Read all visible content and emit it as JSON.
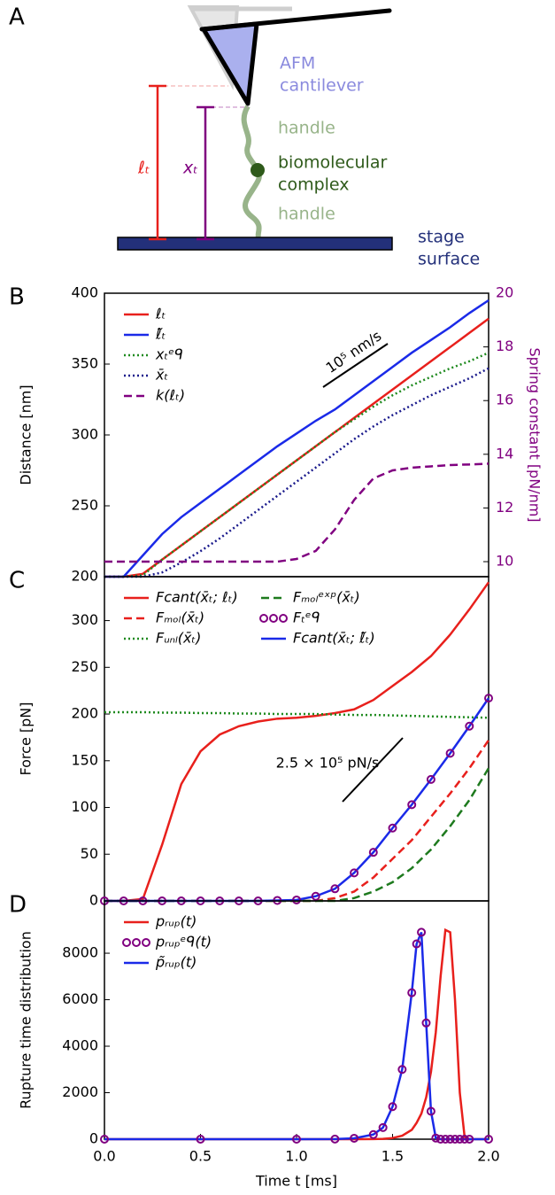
{
  "panel_a": {
    "label": "A",
    "cantilever": [
      "AFM",
      "cantilever"
    ],
    "handle_top": "handle",
    "complex": [
      "biomolecular",
      "complex"
    ],
    "handle_bottom": "handle",
    "stage": [
      "stage",
      "surface"
    ],
    "distance_label": "ℓₜ",
    "extension_label": "xₜ"
  },
  "chart_data": [
    {
      "type": "line",
      "panel_label": "B",
      "ylabel": "Distance [nm]",
      "y2label": "Spring constant [pN/nm]",
      "annotation": "10⁵ nm/s",
      "x": [
        0,
        0.1,
        0.2,
        0.3,
        0.4,
        0.5,
        0.6,
        0.7,
        0.8,
        0.9,
        1.0,
        1.1,
        1.2,
        1.3,
        1.4,
        1.5,
        1.6,
        1.7,
        1.8,
        1.9,
        2.0
      ],
      "xlim": [
        0,
        2
      ],
      "ylim": [
        200,
        400
      ],
      "yticks": [
        200,
        250,
        300,
        350,
        400
      ],
      "y2lim": [
        9.44,
        20
      ],
      "y2ticks": [
        10,
        12,
        14,
        16,
        18,
        20
      ],
      "y2color": "#800080",
      "legend": "upper left",
      "legend_columns": 1,
      "series": [
        {
          "name": "ℓₜ",
          "color": "#e8201c",
          "style": "solid",
          "values": [
            200,
            200,
            202,
            212,
            222,
            232,
            242,
            252,
            262,
            272,
            282,
            292,
            302,
            312,
            322,
            332,
            342,
            352,
            362,
            372,
            382
          ]
        },
        {
          "name": "ℓ̃ₜ",
          "color": "#1a2ae8",
          "style": "solid",
          "values": [
            200,
            200,
            215,
            230,
            242,
            252,
            262,
            272,
            282,
            292,
            301,
            310,
            318,
            328,
            338,
            348,
            358,
            367,
            376,
            386,
            395
          ]
        },
        {
          "name": "xₜᵉᑫ",
          "color": "#1e8a1e",
          "style": "dotted",
          "values": [
            200,
            200,
            201,
            212,
            222,
            232,
            242,
            252,
            262,
            272,
            282,
            292,
            302,
            311,
            320,
            328,
            335,
            341,
            347,
            352,
            358
          ]
        },
        {
          "name": "x̄ₜ",
          "color": "#1a1a8c",
          "style": "dotted",
          "values": [
            200,
            200,
            200,
            203,
            210,
            218,
            227,
            237,
            247,
            257,
            267,
            277,
            287,
            297,
            306,
            314,
            321,
            328,
            334,
            340,
            347
          ]
        },
        {
          "name": "k(ℓₜ)",
          "color": "#800080",
          "style": "dashed",
          "axis": "y2",
          "values": [
            10,
            10,
            10,
            10,
            10,
            10,
            10,
            10,
            10,
            10,
            10.1,
            10.4,
            11.2,
            12.3,
            13.1,
            13.4,
            13.5,
            13.55,
            13.6,
            13.62,
            13.65
          ]
        }
      ]
    },
    {
      "type": "line",
      "panel_label": "C",
      "ylabel": "Force [pN]",
      "annotation": "2.5 × 10⁵ pN/s",
      "x": [
        0,
        0.1,
        0.2,
        0.3,
        0.4,
        0.5,
        0.6,
        0.7,
        0.8,
        0.9,
        1.0,
        1.1,
        1.2,
        1.3,
        1.4,
        1.5,
        1.6,
        1.7,
        1.8,
        1.9,
        2.0
      ],
      "xlim": [
        0,
        2
      ],
      "ylim": [
        0,
        347
      ],
      "yticks": [
        0,
        50,
        100,
        150,
        200,
        250,
        300
      ],
      "legend": "upper left",
      "legend_columns": 2,
      "series": [
        {
          "name": "Fcant(x̄ₜ; ℓₜ)",
          "color": "#e8201c",
          "style": "solid",
          "values": [
            0,
            0,
            2,
            60,
            125,
            160,
            178,
            187,
            192,
            195,
            196,
            198,
            201,
            205,
            215,
            230,
            245,
            262,
            285,
            312,
            341
          ]
        },
        {
          "name": "Fₘₒₗ(x̄ₜ)",
          "color": "#e8201c",
          "style": "dashed",
          "values": [
            0,
            0,
            0,
            0,
            0,
            0,
            0,
            0,
            0,
            0,
            0,
            0,
            3,
            10,
            25,
            45,
            65,
            90,
            115,
            142,
            172
          ]
        },
        {
          "name": "Fᵤₙₗ(x̄ₜ)",
          "color": "#1e8a1e",
          "style": "dotted",
          "values": [
            202,
            202,
            202,
            201.5,
            201.5,
            201,
            201,
            200.5,
            200.5,
            200,
            200,
            200,
            199.5,
            199,
            199,
            198.5,
            198,
            197.5,
            197,
            196.5,
            196
          ]
        },
        {
          "name": "Fₘₒₗᵉˣᵖ(x̄ₜ)",
          "color": "#1e7a1e",
          "style": "dashed",
          "values": [
            0,
            0,
            0,
            0,
            0,
            0,
            0,
            0,
            0,
            0,
            0,
            0,
            0,
            3,
            10,
            20,
            35,
            55,
            80,
            108,
            142
          ]
        },
        {
          "name": "Fₜᵉᑫ",
          "color": "#800080",
          "style": "circles",
          "values": [
            0,
            0,
            0,
            0,
            0,
            0,
            0,
            0,
            0,
            0.5,
            1,
            5,
            13,
            30,
            52,
            78,
            103,
            130,
            158,
            187,
            217
          ]
        },
        {
          "name": "Fcant(x̄ₜ; ℓ̃ₜ)",
          "color": "#1a2ae8",
          "style": "solid",
          "values": [
            0,
            0,
            0,
            0,
            0,
            0,
            0,
            0,
            0,
            0.5,
            1,
            5,
            13,
            30,
            52,
            78,
            103,
            130,
            158,
            187,
            217
          ]
        }
      ]
    },
    {
      "type": "line",
      "panel_label": "D",
      "ylabel": "Rupture time distribution",
      "xlabel": "Time t [ms]",
      "x": [
        0,
        0.5,
        1.0,
        1.2,
        1.3,
        1.4,
        1.45,
        1.5,
        1.55,
        1.6,
        1.625,
        1.65,
        1.675,
        1.7,
        1.725,
        1.75,
        1.775,
        1.8,
        1.825,
        1.85,
        1.875,
        1.9,
        2.0
      ],
      "xlim": [
        0,
        2
      ],
      "xticks": [
        {
          "value": 0,
          "label": "0.0"
        },
        {
          "value": 0.5,
          "label": "0.5"
        },
        {
          "value": 1,
          "label": "1.0"
        },
        {
          "value": 1.5,
          "label": "1.5"
        },
        {
          "value": 2,
          "label": "2.0"
        }
      ],
      "ylim": [
        0,
        10250
      ],
      "yticks": [
        0,
        2000,
        4000,
        6000,
        8000
      ],
      "legend": "upper left",
      "legend_columns": 1,
      "series": [
        {
          "name": "pᵣᵤₚ(t)",
          "color": "#e8201c",
          "style": "solid",
          "values": [
            0,
            0,
            0,
            0,
            0,
            5,
            15,
            50,
            150,
            400,
            700,
            1100,
            1800,
            2900,
            4600,
            7000,
            9000,
            8900,
            6000,
            2000,
            100,
            0,
            0
          ]
        },
        {
          "name": "pᵣᵤₚᵉᑫ(t)",
          "color": "#800080",
          "style": "circles",
          "values": [
            0,
            0,
            0,
            5,
            40,
            200,
            500,
            1400,
            3000,
            6300,
            8400,
            8900,
            5000,
            1200,
            50,
            0,
            0,
            0,
            0,
            0,
            0,
            0,
            0
          ]
        },
        {
          "name": "p̃ᵣᵤₚ(t)",
          "color": "#1a2ae8",
          "style": "solid",
          "values": [
            0,
            0,
            0,
            5,
            40,
            200,
            500,
            1400,
            3000,
            6300,
            8400,
            8900,
            5000,
            1200,
            50,
            0,
            0,
            0,
            0,
            0,
            0,
            0,
            0
          ]
        }
      ]
    }
  ]
}
